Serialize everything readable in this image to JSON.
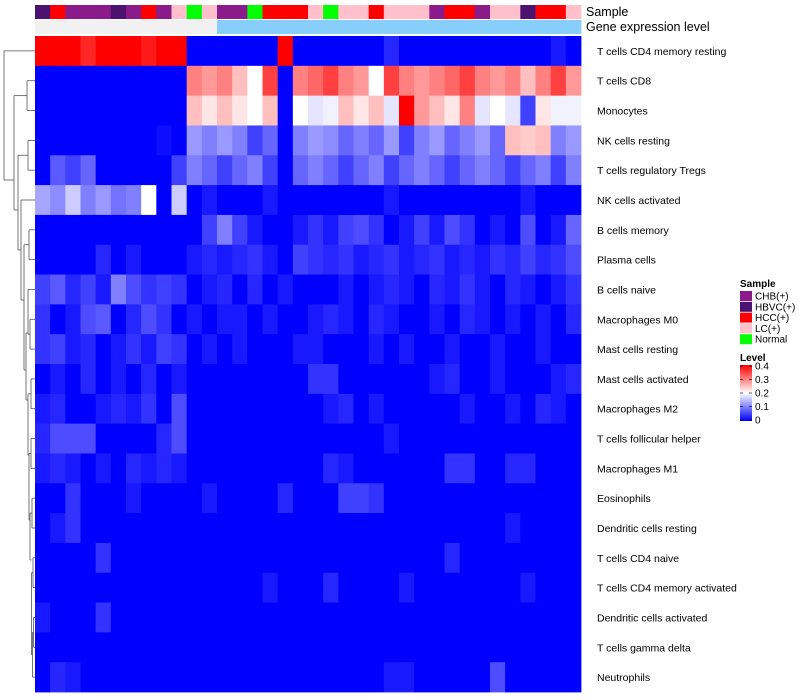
{
  "chart_data": {
    "type": "heatmap",
    "title": "",
    "annotation_labels": [
      "Sample",
      "Gene expression level"
    ],
    "rows": [
      "T cells CD4 memory resting",
      "T cells CD8",
      "Monocytes",
      "NK cells resting",
      "T cells regulatory  Tregs",
      "NK cells activated",
      "B cells memory",
      "Plasma cells",
      "B cells naive",
      "Macrophages M0",
      "Mast cells resting",
      "Mast cells activated",
      "Macrophages M2",
      "T cells follicular helper",
      "Macrophages M1",
      "Eosinophils",
      "Dendritic cells resting",
      "T cells CD4 naive",
      "T cells CD4 memory activated",
      "Dendritic cells activated",
      "T cells gamma delta",
      "Neutrophils"
    ],
    "sample_groups": [
      "HBVC",
      "HCC",
      "CHB",
      "CHB",
      "CHB",
      "HBVC",
      "CHB",
      "HCC",
      "CHB",
      "LC",
      "Normal",
      "LC",
      "CHB",
      "CHB",
      "Normal",
      "HCC",
      "HCC",
      "HCC",
      "LC",
      "Normal",
      "LC",
      "LC",
      "HCC",
      "LC",
      "LC",
      "LC",
      "CHB",
      "HCC",
      "HCC",
      "CHB",
      "LC",
      "LC",
      "HBVC",
      "HCC",
      "HCC",
      "LC"
    ],
    "expression_level_bar": [
      0,
      0,
      0,
      0,
      0,
      0,
      0,
      0,
      0,
      0,
      0,
      0,
      1,
      1,
      1,
      1,
      1,
      1,
      1,
      1,
      1,
      1,
      1,
      1,
      1,
      1,
      1,
      1,
      1,
      1,
      1,
      1,
      1,
      1,
      1,
      1
    ],
    "values": [
      [
        0.4,
        0.4,
        0.4,
        0.37,
        0.4,
        0.4,
        0.4,
        0.38,
        0.4,
        0.4,
        0.0,
        0.0,
        0.0,
        0.0,
        0.0,
        0.0,
        0.4,
        0.0,
        0.0,
        0.0,
        0.0,
        0.0,
        0.0,
        0.03,
        0.0,
        0.0,
        0.0,
        0.0,
        0.0,
        0.0,
        0.0,
        0.0,
        0.0,
        0.0,
        0.02,
        0.0
      ],
      [
        0.0,
        0.0,
        0.0,
        0.0,
        0.0,
        0.0,
        0.0,
        0.0,
        0.0,
        0.0,
        0.3,
        0.28,
        0.3,
        0.25,
        0.2,
        0.35,
        0.0,
        0.3,
        0.32,
        0.35,
        0.3,
        0.28,
        0.2,
        0.35,
        0.3,
        0.28,
        0.3,
        0.32,
        0.35,
        0.3,
        0.28,
        0.3,
        0.25,
        0.3,
        0.35,
        0.28
      ],
      [
        0.0,
        0.0,
        0.0,
        0.0,
        0.0,
        0.0,
        0.0,
        0.0,
        0.0,
        0.0,
        0.25,
        0.22,
        0.25,
        0.22,
        0.2,
        0.25,
        0.0,
        0.2,
        0.18,
        0.19,
        0.25,
        0.22,
        0.25,
        0.18,
        0.4,
        0.28,
        0.25,
        0.22,
        0.3,
        0.18,
        0.2,
        0.18,
        0.05,
        0.22,
        0.19,
        0.19
      ],
      [
        0.0,
        0.0,
        0.0,
        0.0,
        0.0,
        0.0,
        0.0,
        0.0,
        0.01,
        0.0,
        0.12,
        0.1,
        0.12,
        0.1,
        0.05,
        0.08,
        0.0,
        0.1,
        0.12,
        0.11,
        0.08,
        0.1,
        0.08,
        0.12,
        0.05,
        0.1,
        0.12,
        0.08,
        0.1,
        0.12,
        0.08,
        0.25,
        0.24,
        0.25,
        0.1,
        0.12
      ],
      [
        0.0,
        0.07,
        0.05,
        0.08,
        0.0,
        0.0,
        0.0,
        0.0,
        0.0,
        0.05,
        0.1,
        0.08,
        0.05,
        0.08,
        0.1,
        0.05,
        0.0,
        0.08,
        0.1,
        0.08,
        0.05,
        0.08,
        0.1,
        0.05,
        0.08,
        0.1,
        0.08,
        0.05,
        0.08,
        0.1,
        0.08,
        0.05,
        0.08,
        0.1,
        0.05,
        0.1
      ],
      [
        0.13,
        0.11,
        0.16,
        0.1,
        0.12,
        0.09,
        0.1,
        0.2,
        0.0,
        0.16,
        0.0,
        0.02,
        0.0,
        0.0,
        0.0,
        0.02,
        0.0,
        0.0,
        0.0,
        0.0,
        0.0,
        0.0,
        0.0,
        0.02,
        0.0,
        0.0,
        0.0,
        0.0,
        0.0,
        0.0,
        0.0,
        0.0,
        0.02,
        0.0,
        0.0,
        0.0
      ],
      [
        0.0,
        0.0,
        0.0,
        0.0,
        0.0,
        0.0,
        0.0,
        0.0,
        0.0,
        0.0,
        0.0,
        0.05,
        0.1,
        0.05,
        0.02,
        0.0,
        0.0,
        0.02,
        0.04,
        0.02,
        0.05,
        0.06,
        0.04,
        0.0,
        0.02,
        0.05,
        0.02,
        0.06,
        0.04,
        0.0,
        0.02,
        0.0,
        0.06,
        0.0,
        0.02,
        0.08
      ],
      [
        0.0,
        0.0,
        0.0,
        0.0,
        0.03,
        0.0,
        0.02,
        0.0,
        0.0,
        0.0,
        0.02,
        0.03,
        0.02,
        0.03,
        0.04,
        0.02,
        0.0,
        0.05,
        0.04,
        0.03,
        0.04,
        0.02,
        0.03,
        0.04,
        0.02,
        0.03,
        0.04,
        0.02,
        0.03,
        0.02,
        0.04,
        0.03,
        0.05,
        0.03,
        0.04,
        0.06
      ],
      [
        0.05,
        0.07,
        0.03,
        0.05,
        0.02,
        0.1,
        0.06,
        0.04,
        0.05,
        0.04,
        0.0,
        0.02,
        0.03,
        0.0,
        0.03,
        0.0,
        0.02,
        0.0,
        0.0,
        0.0,
        0.02,
        0.0,
        0.02,
        0.03,
        0.02,
        0.0,
        0.03,
        0.02,
        0.04,
        0.02,
        0.0,
        0.03,
        0.02,
        0.0,
        0.02,
        0.04
      ],
      [
        0.04,
        0.0,
        0.02,
        0.06,
        0.07,
        0.0,
        0.03,
        0.06,
        0.04,
        0.0,
        0.02,
        0.0,
        0.02,
        0.02,
        0.0,
        0.02,
        0.0,
        0.0,
        0.02,
        0.03,
        0.02,
        0.0,
        0.03,
        0.02,
        0.0,
        0.0,
        0.02,
        0.0,
        0.03,
        0.02,
        0.0,
        0.02,
        0.0,
        0.02,
        0.0,
        0.03
      ],
      [
        0.04,
        0.05,
        0.02,
        0.03,
        0.0,
        0.02,
        0.04,
        0.02,
        0.05,
        0.04,
        0.0,
        0.02,
        0.0,
        0.02,
        0.0,
        0.0,
        0.0,
        0.02,
        0.02,
        0.0,
        0.0,
        0.0,
        0.02,
        0.0,
        0.02,
        0.0,
        0.0,
        0.02,
        0.0,
        0.0,
        0.02,
        0.0,
        0.0,
        0.02,
        0.0,
        0.0
      ],
      [
        0.0,
        0.02,
        0.0,
        0.03,
        0.0,
        0.02,
        0.0,
        0.03,
        0.0,
        0.02,
        0.0,
        0.0,
        0.0,
        0.0,
        0.0,
        0.0,
        0.0,
        0.0,
        0.04,
        0.04,
        0.0,
        0.0,
        0.0,
        0.0,
        0.0,
        0.0,
        0.02,
        0.03,
        0.0,
        0.0,
        0.02,
        0.0,
        0.0,
        0.0,
        0.02,
        0.03
      ],
      [
        0.02,
        0.03,
        0.0,
        0.0,
        0.02,
        0.03,
        0.02,
        0.04,
        0.0,
        0.06,
        0.0,
        0.0,
        0.0,
        0.0,
        0.0,
        0.0,
        0.0,
        0.0,
        0.0,
        0.02,
        0.03,
        0.0,
        0.02,
        0.0,
        0.0,
        0.0,
        0.0,
        0.0,
        0.02,
        0.0,
        0.0,
        0.02,
        0.0,
        0.03,
        0.02,
        0.0
      ],
      [
        0.03,
        0.06,
        0.06,
        0.06,
        0.0,
        0.0,
        0.0,
        0.0,
        0.03,
        0.06,
        0.0,
        0.0,
        0.0,
        0.0,
        0.0,
        0.0,
        0.0,
        0.0,
        0.0,
        0.0,
        0.0,
        0.0,
        0.0,
        0.02,
        0.0,
        0.0,
        0.0,
        0.0,
        0.0,
        0.0,
        0.0,
        0.0,
        0.0,
        0.0,
        0.0,
        0.0
      ],
      [
        0.02,
        0.03,
        0.02,
        0.0,
        0.02,
        0.0,
        0.03,
        0.02,
        0.03,
        0.02,
        0.0,
        0.0,
        0.0,
        0.0,
        0.0,
        0.0,
        0.0,
        0.0,
        0.0,
        0.03,
        0.02,
        0.0,
        0.0,
        0.0,
        0.0,
        0.0,
        0.0,
        0.04,
        0.04,
        0.0,
        0.0,
        0.03,
        0.03,
        0.0,
        0.0,
        0.0
      ],
      [
        0.0,
        0.0,
        0.04,
        0.0,
        0.0,
        0.0,
        0.02,
        0.0,
        0.0,
        0.0,
        0.0,
        0.02,
        0.0,
        0.0,
        0.0,
        0.0,
        0.03,
        0.0,
        0.0,
        0.0,
        0.05,
        0.05,
        0.04,
        0.0,
        0.0,
        0.0,
        0.0,
        0.0,
        0.0,
        0.0,
        0.0,
        0.0,
        0.0,
        0.0,
        0.0,
        0.0
      ],
      [
        0.0,
        0.02,
        0.04,
        0.0,
        0.0,
        0.0,
        0.0,
        0.0,
        0.0,
        0.0,
        0.0,
        0.0,
        0.0,
        0.0,
        0.0,
        0.0,
        0.0,
        0.0,
        0.0,
        0.0,
        0.0,
        0.0,
        0.0,
        0.0,
        0.0,
        0.0,
        0.0,
        0.0,
        0.0,
        0.0,
        0.0,
        0.02,
        0.0,
        0.0,
        0.0,
        0.0
      ],
      [
        0.0,
        0.0,
        0.0,
        0.0,
        0.04,
        0.0,
        0.0,
        0.0,
        0.0,
        0.0,
        0.0,
        0.0,
        0.0,
        0.0,
        0.0,
        0.0,
        0.0,
        0.0,
        0.0,
        0.0,
        0.0,
        0.0,
        0.0,
        0.0,
        0.0,
        0.0,
        0.0,
        0.03,
        0.0,
        0.0,
        0.0,
        0.0,
        0.0,
        0.0,
        0.0,
        0.0
      ],
      [
        0.0,
        0.0,
        0.0,
        0.0,
        0.0,
        0.0,
        0.0,
        0.0,
        0.0,
        0.0,
        0.0,
        0.0,
        0.0,
        0.0,
        0.0,
        0.02,
        0.0,
        0.0,
        0.0,
        0.03,
        0.0,
        0.0,
        0.0,
        0.0,
        0.02,
        0.0,
        0.0,
        0.0,
        0.0,
        0.0,
        0.0,
        0.0,
        0.02,
        0.0,
        0.0,
        0.0
      ],
      [
        0.02,
        0.0,
        0.0,
        0.0,
        0.04,
        0.0,
        0.0,
        0.0,
        0.0,
        0.0,
        0.0,
        0.0,
        0.0,
        0.0,
        0.0,
        0.0,
        0.0,
        0.0,
        0.0,
        0.0,
        0.0,
        0.0,
        0.0,
        0.0,
        0.0,
        0.0,
        0.0,
        0.0,
        0.0,
        0.0,
        0.0,
        0.0,
        0.0,
        0.0,
        0.0,
        0.0
      ],
      [
        0.0,
        0.0,
        0.0,
        0.0,
        0.0,
        0.0,
        0.0,
        0.0,
        0.0,
        0.0,
        0.0,
        0.0,
        0.0,
        0.0,
        0.0,
        0.0,
        0.0,
        0.0,
        0.0,
        0.0,
        0.0,
        0.0,
        0.0,
        0.0,
        0.0,
        0.0,
        0.0,
        0.0,
        0.0,
        0.0,
        0.0,
        0.0,
        0.0,
        0.0,
        0.0,
        0.0
      ],
      [
        0.0,
        0.03,
        0.02,
        0.0,
        0.0,
        0.0,
        0.0,
        0.0,
        0.0,
        0.0,
        0.0,
        0.0,
        0.0,
        0.0,
        0.0,
        0.0,
        0.0,
        0.0,
        0.0,
        0.0,
        0.0,
        0.0,
        0.0,
        0.02,
        0.02,
        0.0,
        0.0,
        0.0,
        0.0,
        0.0,
        0.06,
        0.0,
        0.0,
        0.0,
        0.0,
        0.0
      ]
    ],
    "color_range": [
      0,
      0.4
    ],
    "colors": {
      "low": "#0000ff",
      "mid": "#ffffff",
      "high": "#ff0000"
    },
    "annotation_colors": {
      "bar_low": "#f1f1f1",
      "bar_high": "#87cefa"
    },
    "legend": {
      "sample_title": "Sample",
      "sample_items": [
        {
          "key": "CHB",
          "label": "CHB(+)",
          "color": "#8b1a8b"
        },
        {
          "key": "HBVC",
          "label": "HBVC(+)",
          "color": "#4b136f"
        },
        {
          "key": "HCC",
          "label": "HCC(+)",
          "color": "#ff0000"
        },
        {
          "key": "LC",
          "label": "LC(+)",
          "color": "#ffc0cb"
        },
        {
          "key": "Normal",
          "label": "Normal",
          "color": "#00ff00"
        }
      ],
      "level_title": "Level",
      "level_ticks": [
        "0.4",
        "0.3",
        "0.2",
        "0.1",
        "0"
      ],
      "placement": "right"
    },
    "row_dendrogram": "left"
  }
}
